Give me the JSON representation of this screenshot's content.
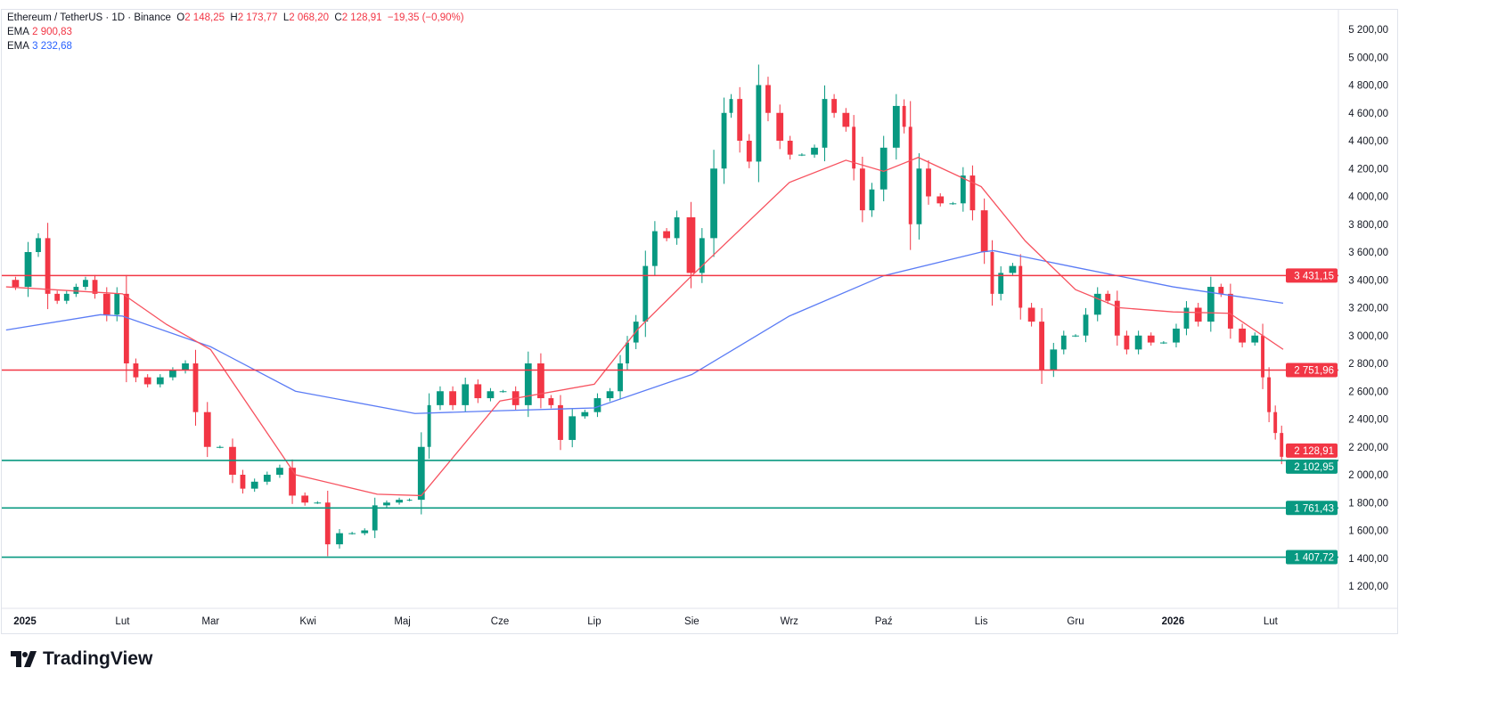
{
  "header": {
    "symbol": "Ethereum / TetherUS · 1D · Binance",
    "o_label": "O",
    "o": "2 148,25",
    "h_label": "H",
    "h": "2 173,77",
    "l_label": "L",
    "l": "2 068,20",
    "c_label": "C",
    "c": "2 128,91",
    "change": "−19,35 (−0,90%)",
    "ema1_label": "EMA",
    "ema1": "2 900,83",
    "ema2_label": "EMA",
    "ema2": "3 232,68"
  },
  "brand": "TradingView",
  "colors": {
    "up": "#089981",
    "down": "#f23645",
    "ema_fast": "#f7525f",
    "ema_slow": "#5b7cf5",
    "resistance": "#f23645",
    "support": "#089981"
  },
  "chart_data": {
    "type": "candlestick",
    "ylim": [
      1100,
      5300
    ],
    "y_ticks": [
      "5 200,00",
      "5 000,00",
      "4 800,00",
      "4 600,00",
      "4 400,00",
      "4 200,00",
      "4 000,00",
      "3 800,00",
      "3 600,00",
      "3 400,00",
      "3 200,00",
      "3 000,00",
      "2 800,00",
      "2 600,00",
      "2 400,00",
      "2 200,00",
      "2 000,00",
      "1 800,00",
      "1 600,00",
      "1 400,00",
      "1 200,00"
    ],
    "y_tick_values": [
      5200,
      5000,
      4800,
      4600,
      4400,
      4200,
      4000,
      3800,
      3600,
      3400,
      3200,
      3000,
      2800,
      2600,
      2400,
      2200,
      2000,
      1800,
      1600,
      1400,
      1200
    ],
    "x_ticks": [
      {
        "label": "2025",
        "date": "2025-01-01",
        "bold": true
      },
      {
        "label": "Lut",
        "date": "2025-02-01"
      },
      {
        "label": "Mar",
        "date": "2025-03-01"
      },
      {
        "label": "Kwi",
        "date": "2025-04-01"
      },
      {
        "label": "Maj",
        "date": "2025-05-01"
      },
      {
        "label": "Cze",
        "date": "2025-06-01"
      },
      {
        "label": "Lip",
        "date": "2025-07-01"
      },
      {
        "label": "Sie",
        "date": "2025-08-01"
      },
      {
        "label": "Wrz",
        "date": "2025-09-01"
      },
      {
        "label": "Paź",
        "date": "2025-10-01"
      },
      {
        "label": "Lis",
        "date": "2025-11-01"
      },
      {
        "label": "Gru",
        "date": "2025-12-01"
      },
      {
        "label": "2026",
        "date": "2026-01-01",
        "bold": true
      },
      {
        "label": "Lut",
        "date": "2026-02-01"
      }
    ],
    "closes": [
      [
        "2024-12-26",
        3400
      ],
      [
        "2024-12-30",
        3350
      ],
      [
        "2025-01-03",
        3600
      ],
      [
        "2025-01-06",
        3700
      ],
      [
        "2025-01-09",
        3300
      ],
      [
        "2025-01-12",
        3250
      ],
      [
        "2025-01-15",
        3300
      ],
      [
        "2025-01-18",
        3350
      ],
      [
        "2025-01-21",
        3400
      ],
      [
        "2025-01-24",
        3300
      ],
      [
        "2025-01-28",
        3150
      ],
      [
        "2025-01-31",
        3300
      ],
      [
        "2025-02-03",
        2800
      ],
      [
        "2025-02-06",
        2700
      ],
      [
        "2025-02-10",
        2650
      ],
      [
        "2025-02-14",
        2700
      ],
      [
        "2025-02-18",
        2750
      ],
      [
        "2025-02-22",
        2800
      ],
      [
        "2025-02-25",
        2450
      ],
      [
        "2025-03-01",
        2200
      ],
      [
        "2025-03-05",
        2200
      ],
      [
        "2025-03-09",
        2000
      ],
      [
        "2025-03-12",
        1900
      ],
      [
        "2025-03-16",
        1950
      ],
      [
        "2025-03-20",
        2000
      ],
      [
        "2025-03-24",
        2050
      ],
      [
        "2025-03-28",
        1850
      ],
      [
        "2025-04-01",
        1800
      ],
      [
        "2025-04-05",
        1800
      ],
      [
        "2025-04-08",
        1500
      ],
      [
        "2025-04-12",
        1580
      ],
      [
        "2025-04-16",
        1580
      ],
      [
        "2025-04-20",
        1600
      ],
      [
        "2025-04-23",
        1780
      ],
      [
        "2025-04-27",
        1800
      ],
      [
        "2025-05-01",
        1820
      ],
      [
        "2025-05-04",
        1820
      ],
      [
        "2025-05-08",
        2200
      ],
      [
        "2025-05-10",
        2500
      ],
      [
        "2025-05-14",
        2600
      ],
      [
        "2025-05-18",
        2500
      ],
      [
        "2025-05-22",
        2650
      ],
      [
        "2025-05-26",
        2550
      ],
      [
        "2025-05-30",
        2600
      ],
      [
        "2025-06-03",
        2600
      ],
      [
        "2025-06-07",
        2500
      ],
      [
        "2025-06-11",
        2800
      ],
      [
        "2025-06-15",
        2550
      ],
      [
        "2025-06-18",
        2500
      ],
      [
        "2025-06-21",
        2250
      ],
      [
        "2025-06-25",
        2420
      ],
      [
        "2025-06-29",
        2450
      ],
      [
        "2025-07-03",
        2550
      ],
      [
        "2025-07-07",
        2600
      ],
      [
        "2025-07-10",
        2800
      ],
      [
        "2025-07-12",
        2950
      ],
      [
        "2025-07-15",
        3100
      ],
      [
        "2025-07-18",
        3500
      ],
      [
        "2025-07-21",
        3750
      ],
      [
        "2025-07-25",
        3700
      ],
      [
        "2025-07-28",
        3850
      ],
      [
        "2025-08-02",
        3450
      ],
      [
        "2025-08-05",
        3700
      ],
      [
        "2025-08-09",
        4200
      ],
      [
        "2025-08-12",
        4600
      ],
      [
        "2025-08-14",
        4700
      ],
      [
        "2025-08-17",
        4400
      ],
      [
        "2025-08-20",
        4250
      ],
      [
        "2025-08-23",
        4800
      ],
      [
        "2025-08-26",
        4600
      ],
      [
        "2025-08-30",
        4400
      ],
      [
        "2025-09-02",
        4300
      ],
      [
        "2025-09-06",
        4300
      ],
      [
        "2025-09-10",
        4350
      ],
      [
        "2025-09-13",
        4700
      ],
      [
        "2025-09-16",
        4600
      ],
      [
        "2025-09-20",
        4500
      ],
      [
        "2025-09-22",
        4200
      ],
      [
        "2025-09-25",
        3900
      ],
      [
        "2025-09-28",
        4050
      ],
      [
        "2025-10-02",
        4350
      ],
      [
        "2025-10-06",
        4650
      ],
      [
        "2025-10-08",
        4500
      ],
      [
        "2025-10-10",
        3800
      ],
      [
        "2025-10-13",
        4200
      ],
      [
        "2025-10-16",
        4000
      ],
      [
        "2025-10-20",
        3950
      ],
      [
        "2025-10-24",
        3950
      ],
      [
        "2025-10-27",
        4150
      ],
      [
        "2025-10-30",
        3900
      ],
      [
        "2025-11-03",
        3600
      ],
      [
        "2025-11-05",
        3300
      ],
      [
        "2025-11-08",
        3450
      ],
      [
        "2025-11-12",
        3500
      ],
      [
        "2025-11-14",
        3200
      ],
      [
        "2025-11-18",
        3100
      ],
      [
        "2025-11-21",
        2750
      ],
      [
        "2025-11-25",
        2900
      ],
      [
        "2025-11-28",
        3000
      ],
      [
        "2025-12-02",
        3000
      ],
      [
        "2025-12-05",
        3150
      ],
      [
        "2025-12-09",
        3300
      ],
      [
        "2025-12-12",
        3250
      ],
      [
        "2025-12-15",
        3000
      ],
      [
        "2025-12-18",
        2900
      ],
      [
        "2025-12-22",
        3000
      ],
      [
        "2025-12-26",
        2950
      ],
      [
        "2025-12-30",
        2950
      ],
      [
        "2026-01-03",
        3050
      ],
      [
        "2026-01-06",
        3200
      ],
      [
        "2026-01-10",
        3100
      ],
      [
        "2026-01-14",
        3350
      ],
      [
        "2026-01-17",
        3300
      ],
      [
        "2026-01-20",
        3050
      ],
      [
        "2026-01-24",
        2950
      ],
      [
        "2026-01-28",
        3000
      ],
      [
        "2026-01-30",
        2700
      ],
      [
        "2026-02-01",
        2450
      ],
      [
        "2026-02-03",
        2300
      ],
      [
        "2026-02-05",
        2128.91
      ]
    ],
    "ema_fast": [
      [
        "2024-12-26",
        3350
      ],
      [
        "2025-02-01",
        3300
      ],
      [
        "2025-02-15",
        3080
      ],
      [
        "2025-03-01",
        2900
      ],
      [
        "2025-03-28",
        2000
      ],
      [
        "2025-04-23",
        1860
      ],
      [
        "2025-05-07",
        1850
      ],
      [
        "2025-06-01",
        2530
      ],
      [
        "2025-07-01",
        2650
      ],
      [
        "2025-07-15",
        3050
      ],
      [
        "2025-08-01",
        3430
      ],
      [
        "2025-09-01",
        4100
      ],
      [
        "2025-09-19",
        4260
      ],
      [
        "2025-10-01",
        4180
      ],
      [
        "2025-10-12",
        4280
      ],
      [
        "2025-11-01",
        4070
      ],
      [
        "2025-11-15",
        3680
      ],
      [
        "2025-12-01",
        3330
      ],
      [
        "2025-12-15",
        3200
      ],
      [
        "2026-01-01",
        3170
      ],
      [
        "2026-01-19",
        3160
      ],
      [
        "2026-02-05",
        2900.83
      ]
    ],
    "ema_slow": [
      [
        "2024-12-26",
        3040
      ],
      [
        "2025-01-25",
        3150
      ],
      [
        "2025-02-01",
        3140
      ],
      [
        "2025-03-01",
        2920
      ],
      [
        "2025-03-28",
        2600
      ],
      [
        "2025-05-05",
        2440
      ],
      [
        "2025-06-01",
        2460
      ],
      [
        "2025-07-01",
        2480
      ],
      [
        "2025-08-01",
        2720
      ],
      [
        "2025-09-01",
        3140
      ],
      [
        "2025-10-01",
        3430
      ],
      [
        "2025-11-01",
        3600
      ],
      [
        "2025-11-05",
        3610
      ],
      [
        "2025-12-01",
        3490
      ],
      [
        "2026-01-01",
        3350
      ],
      [
        "2026-02-05",
        3232.68
      ]
    ],
    "levels": [
      {
        "value": 3431.15,
        "label": "3 431,15",
        "kind": "resistance"
      },
      {
        "value": 2751.96,
        "label": "2 751,96",
        "kind": "resistance"
      },
      {
        "value": 2102.95,
        "label": "2 102,95",
        "kind": "support"
      },
      {
        "value": 1761.43,
        "label": "1 761,43",
        "kind": "support"
      },
      {
        "value": 1407.72,
        "label": "1 407,72",
        "kind": "support"
      }
    ],
    "last_price": {
      "value": 2128.91,
      "label": "2 128,91"
    }
  }
}
